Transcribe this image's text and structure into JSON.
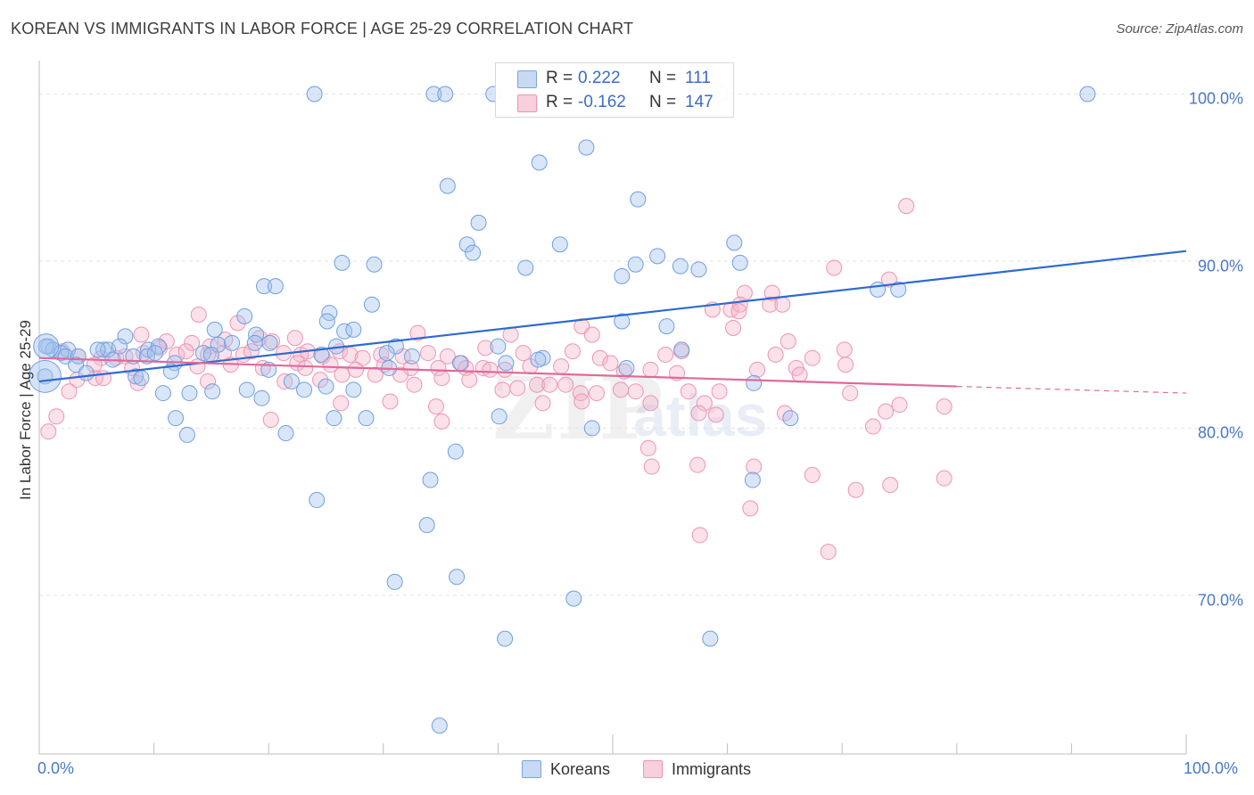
{
  "header": {
    "title": "KOREAN VS IMMIGRANTS IN LABOR FORCE | AGE 25-29 CORRELATION CHART",
    "source": "Source: ZipAtlas.com"
  },
  "watermark": {
    "main": "ZIP",
    "sub": "atlas"
  },
  "stats": [
    {
      "r_label": "R =",
      "r_value": "0.222",
      "n_label": "N =",
      "n_value": "111"
    },
    {
      "r_label": "R =",
      "r_value": "-0.162",
      "n_label": "N =",
      "n_value": "147"
    }
  ],
  "legend": [
    {
      "label": "Koreans"
    },
    {
      "label": "Immigrants"
    }
  ],
  "chart_data": {
    "type": "scatter",
    "title": "KOREAN VS IMMIGRANTS IN LABOR FORCE | AGE 25-29 CORRELATION CHART",
    "xlabel": "",
    "ylabel": "In Labor Force | Age 25-29",
    "xlim": [
      0,
      100
    ],
    "ylim": [
      60.5,
      102
    ],
    "x_tick_labels": [
      "0.0%",
      "100.0%"
    ],
    "y_ticks": [
      70,
      80,
      90,
      100
    ],
    "y_tick_labels": [
      "70.0%",
      "80.0%",
      "90.0%",
      "100.0%"
    ],
    "grid": true,
    "legend_position": "bottom-center",
    "colors": {
      "koreans": "#6f9fe0",
      "immigrants": "#ee93b2",
      "koreans_line": "#2d6ad0",
      "immigrants_line": "#e0699a",
      "accent": "#4a78c8"
    },
    "series": [
      {
        "name": "Koreans",
        "r": 0.222,
        "n": 111,
        "trend": {
          "x": [
            0,
            100
          ],
          "y": [
            82.8,
            90.6
          ]
        },
        "points": [
          [
            24,
            100
          ],
          [
            34.4,
            100
          ],
          [
            35.4,
            100
          ],
          [
            39.6,
            100
          ],
          [
            59.4,
            100
          ],
          [
            91.4,
            100
          ],
          [
            43.6,
            95.9
          ],
          [
            47.7,
            96.8
          ],
          [
            35.6,
            94.5
          ],
          [
            52.2,
            93.7
          ],
          [
            38.3,
            92.3
          ],
          [
            37.3,
            91.0
          ],
          [
            37.8,
            90.5
          ],
          [
            45.4,
            91.0
          ],
          [
            60.6,
            91.1
          ],
          [
            26.4,
            89.9
          ],
          [
            29.2,
            89.8
          ],
          [
            42.4,
            89.6
          ],
          [
            52.0,
            89.8
          ],
          [
            53.9,
            90.3
          ],
          [
            55.9,
            89.7
          ],
          [
            57.5,
            89.5
          ],
          [
            61.1,
            89.9
          ],
          [
            50.8,
            89.1
          ],
          [
            19.6,
            88.5
          ],
          [
            20.6,
            88.5
          ],
          [
            73.1,
            88.3
          ],
          [
            74.9,
            88.3
          ],
          [
            29.0,
            87.4
          ],
          [
            17.9,
            86.7
          ],
          [
            25.3,
            86.9
          ],
          [
            25.1,
            86.4
          ],
          [
            50.8,
            86.4
          ],
          [
            54.7,
            86.1
          ],
          [
            7.5,
            85.5
          ],
          [
            15.3,
            85.9
          ],
          [
            18.9,
            85.6
          ],
          [
            26.6,
            85.8
          ],
          [
            27.4,
            85.9
          ],
          [
            0.8,
            84.9
          ],
          [
            1.2,
            84.7
          ],
          [
            2.5,
            84.7
          ],
          [
            5.6,
            84.7
          ],
          [
            6.0,
            84.7
          ],
          [
            7.0,
            84.9
          ],
          [
            9.5,
            84.7
          ],
          [
            10.4,
            84.9
          ],
          [
            15.6,
            85.0
          ],
          [
            16.8,
            85.1
          ],
          [
            18.8,
            85.1
          ],
          [
            20.1,
            85.1
          ],
          [
            25.9,
            84.9
          ],
          [
            31.1,
            84.9
          ],
          [
            40.0,
            84.9
          ],
          [
            56.0,
            84.7
          ],
          [
            1.9,
            84.5
          ],
          [
            2.3,
            84.3
          ],
          [
            3.4,
            84.3
          ],
          [
            5.1,
            84.7
          ],
          [
            8.2,
            84.3
          ],
          [
            9.4,
            84.3
          ],
          [
            10.1,
            84.5
          ],
          [
            14.3,
            84.5
          ],
          [
            15.0,
            84.4
          ],
          [
            24.6,
            84.4
          ],
          [
            30.3,
            84.5
          ],
          [
            32.5,
            84.3
          ],
          [
            40.7,
            83.9
          ],
          [
            43.9,
            84.2
          ],
          [
            3.2,
            83.8
          ],
          [
            4.1,
            83.3
          ],
          [
            11.8,
            83.9
          ],
          [
            11.5,
            83.4
          ],
          [
            20.0,
            83.5
          ],
          [
            30.5,
            83.6
          ],
          [
            36.7,
            83.9
          ],
          [
            43.5,
            84.1
          ],
          [
            51.2,
            83.6
          ],
          [
            8.4,
            83.1
          ],
          [
            8.9,
            83.0
          ],
          [
            15.1,
            82.2
          ],
          [
            18.1,
            82.3
          ],
          [
            22.0,
            82.8
          ],
          [
            23.1,
            82.3
          ],
          [
            25.0,
            82.5
          ],
          [
            27.4,
            82.3
          ],
          [
            10.8,
            82.1
          ],
          [
            13.1,
            82.1
          ],
          [
            19.4,
            81.8
          ],
          [
            62.3,
            82.7
          ],
          [
            40.1,
            80.7
          ],
          [
            11.9,
            80.6
          ],
          [
            25.7,
            80.6
          ],
          [
            28.5,
            80.6
          ],
          [
            65.5,
            80.6
          ],
          [
            12.9,
            79.6
          ],
          [
            21.5,
            79.7
          ],
          [
            48.2,
            80.0
          ],
          [
            36.3,
            78.6
          ],
          [
            34.1,
            76.9
          ],
          [
            62.2,
            76.9
          ],
          [
            24.2,
            75.7
          ],
          [
            33.8,
            74.2
          ],
          [
            36.4,
            71.1
          ],
          [
            31.0,
            70.8
          ],
          [
            46.6,
            69.8
          ],
          [
            40.6,
            67.4
          ],
          [
            58.5,
            67.4
          ],
          [
            34.9,
            62.2
          ],
          [
            0.6,
            84.9
          ],
          [
            0.5,
            83.1
          ],
          [
            6.4,
            84.1
          ]
        ]
      },
      {
        "name": "Immigrants",
        "r": -0.162,
        "n": 147,
        "trend": {
          "x": [
            0,
            80
          ],
          "y": [
            84.2,
            82.5
          ]
        },
        "trend_dashed": {
          "x": [
            80,
            100
          ],
          "y": [
            82.5,
            82.1
          ]
        },
        "points": [
          [
            75.6,
            93.3
          ],
          [
            69.3,
            89.6
          ],
          [
            74.1,
            88.9
          ],
          [
            61.5,
            88.1
          ],
          [
            63.9,
            88.1
          ],
          [
            58.7,
            87.1
          ],
          [
            60.3,
            87.1
          ],
          [
            61.1,
            87.4
          ],
          [
            61.0,
            87.0
          ],
          [
            63.7,
            87.4
          ],
          [
            64.8,
            87.4
          ],
          [
            13.9,
            86.8
          ],
          [
            17.3,
            86.3
          ],
          [
            47.3,
            86.1
          ],
          [
            60.5,
            86.0
          ],
          [
            8.9,
            85.6
          ],
          [
            11.1,
            85.2
          ],
          [
            13.3,
            85.1
          ],
          [
            14.9,
            84.9
          ],
          [
            16.2,
            85.3
          ],
          [
            19.2,
            85.4
          ],
          [
            20.3,
            85.2
          ],
          [
            22.3,
            85.4
          ],
          [
            33.0,
            85.7
          ],
          [
            41.1,
            85.6
          ],
          [
            48.2,
            85.6
          ],
          [
            65.3,
            85.2
          ],
          [
            2.0,
            84.6
          ],
          [
            3.4,
            84.3
          ],
          [
            5.4,
            84.2
          ],
          [
            6.7,
            84.2
          ],
          [
            7.5,
            84.3
          ],
          [
            9.1,
            84.5
          ],
          [
            10.5,
            84.8
          ],
          [
            12.0,
            84.4
          ],
          [
            12.8,
            84.6
          ],
          [
            14.7,
            84.4
          ],
          [
            16.1,
            84.5
          ],
          [
            17.8,
            84.4
          ],
          [
            18.5,
            84.6
          ],
          [
            21.3,
            84.5
          ],
          [
            22.8,
            84.4
          ],
          [
            23.4,
            84.6
          ],
          [
            24.7,
            84.3
          ],
          [
            26.2,
            84.6
          ],
          [
            27.1,
            84.4
          ],
          [
            28.2,
            84.2
          ],
          [
            29.8,
            84.4
          ],
          [
            31.7,
            84.3
          ],
          [
            33.9,
            84.5
          ],
          [
            35.6,
            84.3
          ],
          [
            38.9,
            84.8
          ],
          [
            42.2,
            84.5
          ],
          [
            46.5,
            84.6
          ],
          [
            48.9,
            84.2
          ],
          [
            54.6,
            84.4
          ],
          [
            56.0,
            84.6
          ],
          [
            70.2,
            84.7
          ],
          [
            4.8,
            83.8
          ],
          [
            8.1,
            83.6
          ],
          [
            13.8,
            83.7
          ],
          [
            16.7,
            83.8
          ],
          [
            19.5,
            83.6
          ],
          [
            22.5,
            83.9
          ],
          [
            23.2,
            83.6
          ],
          [
            25.4,
            83.8
          ],
          [
            27.6,
            83.5
          ],
          [
            30.1,
            83.8
          ],
          [
            32.4,
            83.6
          ],
          [
            34.8,
            83.6
          ],
          [
            36.8,
            83.9
          ],
          [
            37.2,
            83.6
          ],
          [
            38.7,
            83.6
          ],
          [
            39.3,
            83.5
          ],
          [
            40.6,
            83.5
          ],
          [
            42.8,
            83.7
          ],
          [
            45.5,
            83.7
          ],
          [
            51.0,
            83.4
          ],
          [
            53.3,
            83.5
          ],
          [
            62.6,
            83.5
          ],
          [
            66.0,
            83.6
          ],
          [
            70.3,
            83.8
          ],
          [
            3.3,
            82.9
          ],
          [
            4.9,
            83.0
          ],
          [
            8.6,
            82.7
          ],
          [
            14.7,
            82.8
          ],
          [
            21.4,
            82.8
          ],
          [
            24.5,
            82.9
          ],
          [
            26.4,
            83.2
          ],
          [
            29.3,
            83.2
          ],
          [
            31.5,
            83.2
          ],
          [
            32.7,
            82.6
          ],
          [
            35.1,
            83.0
          ],
          [
            37.5,
            82.9
          ],
          [
            40.4,
            82.3
          ],
          [
            43.4,
            82.6
          ],
          [
            44.5,
            82.6
          ],
          [
            45.9,
            82.6
          ],
          [
            47.2,
            82.1
          ],
          [
            48.6,
            82.1
          ],
          [
            50.7,
            82.3
          ],
          [
            52.0,
            82.2
          ],
          [
            56.6,
            82.2
          ],
          [
            59.3,
            82.2
          ],
          [
            2.6,
            82.2
          ],
          [
            5.6,
            83.0
          ],
          [
            26.3,
            81.5
          ],
          [
            30.6,
            81.6
          ],
          [
            43.9,
            81.5
          ],
          [
            47.3,
            81.6
          ],
          [
            53.3,
            81.5
          ],
          [
            58.0,
            81.5
          ],
          [
            70.7,
            82.1
          ],
          [
            75.0,
            81.4
          ],
          [
            1.5,
            80.7
          ],
          [
            20.2,
            80.5
          ],
          [
            35.1,
            80.4
          ],
          [
            57.5,
            80.9
          ],
          [
            59.0,
            80.8
          ],
          [
            65.0,
            80.9
          ],
          [
            73.8,
            81.0
          ],
          [
            78.9,
            81.3
          ],
          [
            0.8,
            79.8
          ],
          [
            72.7,
            80.1
          ],
          [
            53.1,
            78.8
          ],
          [
            53.4,
            77.7
          ],
          [
            57.4,
            77.8
          ],
          [
            62.3,
            77.7
          ],
          [
            67.4,
            77.2
          ],
          [
            78.9,
            77.0
          ],
          [
            74.2,
            76.6
          ],
          [
            71.2,
            76.3
          ],
          [
            62.0,
            75.2
          ],
          [
            57.6,
            73.6
          ],
          [
            68.8,
            72.6
          ],
          [
            34.6,
            81.3
          ],
          [
            41.7,
            82.4
          ],
          [
            49.8,
            83.9
          ],
          [
            55.6,
            83.3
          ],
          [
            66.3,
            83.2
          ],
          [
            67.4,
            84.2
          ],
          [
            64.2,
            84.4
          ]
        ]
      }
    ]
  }
}
